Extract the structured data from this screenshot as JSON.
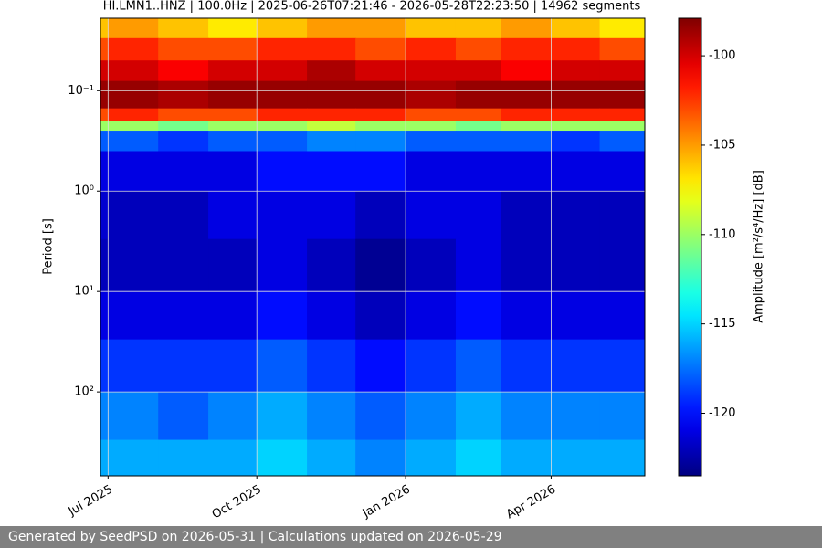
{
  "chart_data": {
    "type": "heatmap",
    "title": "HI.LMN1..HNZ | 100.0Hz | 2025-06-26T07:21:46 - 2026-05-28T22:23:50 | 14962 segments",
    "y_label": "Period [s]",
    "colorbar_label": "Amplitude [m²/s⁴/Hz] [dB]",
    "colormap": "jet",
    "y_log": true,
    "y_inverted": true,
    "grid": true,
    "xlim": [
      "2025-06-26T07:21:46",
      "2026-05-28T22:23:50"
    ],
    "xticks": [
      {
        "value": "2025-07-01",
        "label": "Jul 2025"
      },
      {
        "value": "2025-10-01",
        "label": "Oct 2025"
      },
      {
        "value": "2026-01-01",
        "label": "Jan 2026"
      },
      {
        "value": "2026-04-01",
        "label": "Apr 2026"
      }
    ],
    "ylim": [
      0.019,
      685
    ],
    "yticks": [
      {
        "value": 0.1,
        "label": "10⁻¹"
      },
      {
        "value": 1,
        "label": "10⁰"
      },
      {
        "value": 10,
        "label": "10¹"
      },
      {
        "value": 100,
        "label": "10²"
      }
    ],
    "clim": [
      -123.5,
      -97.9
    ],
    "cticks": [
      -100,
      -105,
      -110,
      -115,
      -120
    ],
    "x_bins": [
      "2025-06-26T07:21:46",
      "2025-07-01",
      "2025-08-01",
      "2025-09-01",
      "2025-10-01",
      "2025-11-01",
      "2025-12-01",
      "2026-01-01",
      "2026-02-01",
      "2026-03-01",
      "2026-04-01",
      "2026-05-01",
      "2026-05-28T22:23:50"
    ],
    "y_bins": [
      0.019,
      0.03,
      0.05,
      0.08,
      0.15,
      0.2,
      0.25,
      0.4,
      1,
      3,
      10,
      30,
      100,
      300,
      685
    ],
    "values": [
      [
        -106,
        -105,
        -106,
        -107,
        -106,
        -105,
        -105,
        -106,
        -106,
        -105,
        -106,
        -107
      ],
      [
        -103,
        -102,
        -103,
        -103,
        -102,
        -102,
        -103,
        -102,
        -103,
        -102,
        -102,
        -103
      ],
      [
        -100,
        -100,
        -101,
        -100,
        -100,
        -99,
        -100,
        -100,
        -100,
        -101,
        -100,
        -100
      ],
      [
        -98.5,
        -98.5,
        -99,
        -98.5,
        -98.5,
        -98.5,
        -98.5,
        -99,
        -98.5,
        -98.5,
        -98.5,
        -98.5
      ],
      [
        -103,
        -102,
        -103,
        -103,
        -102,
        -102,
        -102,
        -103,
        -103,
        -102,
        -102,
        -102
      ],
      [
        -110,
        -110,
        -111,
        -110,
        -110,
        -109,
        -110,
        -110,
        -111,
        -110,
        -110,
        -110
      ],
      [
        -118,
        -118,
        -119,
        -118,
        -118,
        -117,
        -117,
        -118,
        -118,
        -118,
        -119,
        -118
      ],
      [
        -121,
        -121,
        -121,
        -121,
        -120,
        -120,
        -120,
        -121,
        -121,
        -121,
        -121,
        -121
      ],
      [
        -121.5,
        -122,
        -122,
        -121,
        -121,
        -121,
        -122,
        -121,
        -121,
        -122,
        -122,
        -122
      ],
      [
        -122,
        -122,
        -122,
        -122,
        -121,
        -122,
        -123,
        -122,
        -121,
        -122,
        -122,
        -122
      ],
      [
        -121,
        -121,
        -121,
        -121,
        -120,
        -121,
        -122,
        -121,
        -120,
        -121,
        -121,
        -121
      ],
      [
        -119,
        -119,
        -119,
        -119,
        -118,
        -119,
        -120,
        -119,
        -118,
        -119,
        -119,
        -119
      ],
      [
        -117,
        -117,
        -118,
        -117,
        -116,
        -117,
        -118,
        -117,
        -116,
        -117,
        -117,
        -117
      ],
      [
        -116,
        -116,
        -116,
        -116,
        -115,
        -116,
        -117,
        -116,
        -115,
        -116,
        -116,
        -116
      ]
    ]
  },
  "footer": {
    "text": "Generated by SeedPSD on 2026-05-31 | Calculations updated on 2026-05-29"
  }
}
